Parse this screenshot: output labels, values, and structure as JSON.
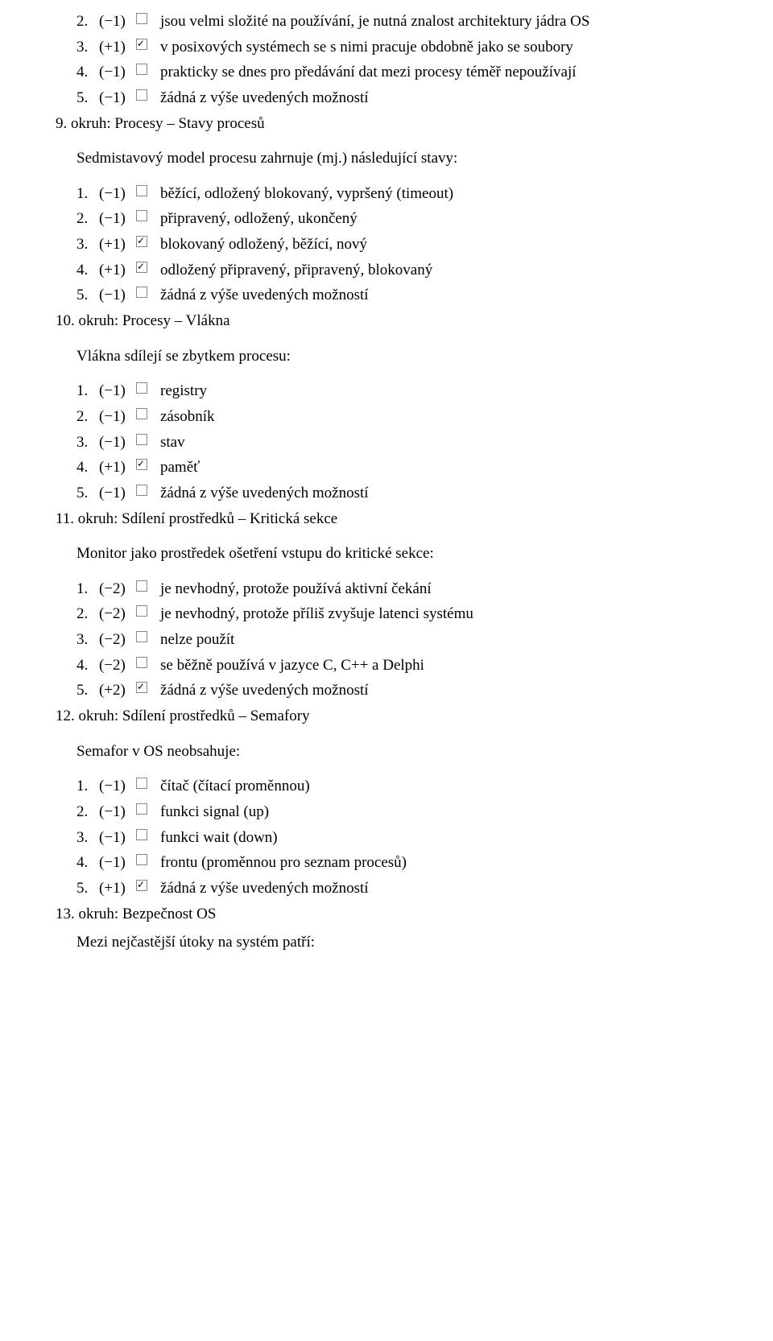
{
  "q8_options": [
    {
      "num": "2.",
      "score": "(−1)",
      "checked": false,
      "label": "jsou velmi složité na používání, je nutná znalost architektury jádra OS"
    },
    {
      "num": "3.",
      "score": "(+1)",
      "checked": true,
      "label": "v posixových systémech se s nimi pracuje obdobně jako se soubory"
    },
    {
      "num": "4.",
      "score": "(−1)",
      "checked": false,
      "label": "prakticky se dnes pro předávání dat mezi procesy téměř nepoužívají"
    },
    {
      "num": "5.",
      "score": "(−1)",
      "checked": false,
      "label": "žádná z výše uvedených možností"
    }
  ],
  "q9_header": "9. okruh: Procesy – Stavy procesů",
  "q9_stem": "Sedmistavový model procesu zahrnuje (mj.) následující stavy:",
  "q9_options": [
    {
      "num": "1.",
      "score": "(−1)",
      "checked": false,
      "label": "běžící, odložený blokovaný, vypršený (timeout)"
    },
    {
      "num": "2.",
      "score": "(−1)",
      "checked": false,
      "label": "připravený, odložený, ukončený"
    },
    {
      "num": "3.",
      "score": "(+1)",
      "checked": true,
      "label": "blokovaný odložený, běžící, nový"
    },
    {
      "num": "4.",
      "score": "(+1)",
      "checked": true,
      "label": "odložený připravený, připravený, blokovaný"
    },
    {
      "num": "5.",
      "score": "(−1)",
      "checked": false,
      "label": "žádná z výše uvedených možností"
    }
  ],
  "q10_header": "10. okruh: Procesy – Vlákna",
  "q10_stem": "Vlákna sdílejí se zbytkem procesu:",
  "q10_options": [
    {
      "num": "1.",
      "score": "(−1)",
      "checked": false,
      "label": "registry"
    },
    {
      "num": "2.",
      "score": "(−1)",
      "checked": false,
      "label": "zásobník"
    },
    {
      "num": "3.",
      "score": "(−1)",
      "checked": false,
      "label": "stav"
    },
    {
      "num": "4.",
      "score": "(+1)",
      "checked": true,
      "label": "paměť"
    },
    {
      "num": "5.",
      "score": "(−1)",
      "checked": false,
      "label": "žádná z výše uvedených možností"
    }
  ],
  "q11_header": "11. okruh: Sdílení prostředků – Kritická sekce",
  "q11_stem": "Monitor jako prostředek ošetření vstupu do kritické sekce:",
  "q11_options": [
    {
      "num": "1.",
      "score": "(−2)",
      "checked": false,
      "label": "je nevhodný, protože používá aktivní čekání"
    },
    {
      "num": "2.",
      "score": "(−2)",
      "checked": false,
      "label": "je nevhodný, protože příliš zvyšuje latenci systému"
    },
    {
      "num": "3.",
      "score": "(−2)",
      "checked": false,
      "label": "nelze použít"
    },
    {
      "num": "4.",
      "score": "(−2)",
      "checked": false,
      "label": "se běžně používá v jazyce C, C++ a Delphi"
    },
    {
      "num": "5.",
      "score": "(+2)",
      "checked": true,
      "label": "žádná z výše uvedených možností"
    }
  ],
  "q12_header": "12. okruh: Sdílení prostředků – Semafory",
  "q12_stem": "Semafor v OS neobsahuje:",
  "q12_options": [
    {
      "num": "1.",
      "score": "(−1)",
      "checked": false,
      "label": "čítač (čítací proměnnou)"
    },
    {
      "num": "2.",
      "score": "(−1)",
      "checked": false,
      "label": "funkci signal (up)"
    },
    {
      "num": "3.",
      "score": "(−1)",
      "checked": false,
      "label": "funkci wait (down)"
    },
    {
      "num": "4.",
      "score": "(−1)",
      "checked": false,
      "label": "frontu (proměnnou pro seznam procesů)"
    },
    {
      "num": "5.",
      "score": "(+1)",
      "checked": true,
      "label": "žádná z výše uvedených možností"
    }
  ],
  "q13_header": "13. okruh: Bezpečnost OS",
  "q13_stem": "Mezi nejčastější útoky na systém patří:"
}
